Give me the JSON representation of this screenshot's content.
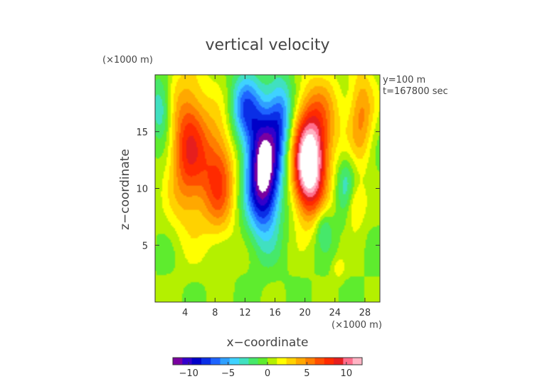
{
  "chart_data": {
    "type": "heatmap",
    "title": "vertical velocity",
    "xlabel": "x−coordinate",
    "ylabel": "z−coordinate",
    "x_unit": "(×1000 m)",
    "y_unit": "(×1000 m)",
    "annotations": [
      "y=100 m",
      "t=167800 sec"
    ],
    "xlim": [
      0,
      30
    ],
    "ylim": [
      0,
      20
    ],
    "x_ticks": [
      4,
      8,
      12,
      16,
      20,
      24,
      28
    ],
    "y_ticks": [
      5,
      10,
      15
    ],
    "x_tick_labels": [
      "4",
      "8",
      "12",
      "16",
      "20",
      "24",
      "28"
    ],
    "y_tick_labels": [
      "5",
      "10",
      "15"
    ],
    "colorbar": {
      "min": -12,
      "max": 12,
      "ticks": [
        -10,
        -5,
        0,
        5,
        10
      ],
      "tick_labels": [
        "−10",
        "−5",
        "0",
        "5",
        "10"
      ],
      "colors": [
        "#7a00a0",
        "#3300cc",
        "#0000c8",
        "#0a2ee6",
        "#1e64ff",
        "#2fa0ff",
        "#3fd2ff",
        "#40e0c0",
        "#46e86a",
        "#5eec2e",
        "#b4f000",
        "#ffff00",
        "#ffd200",
        "#ffa800",
        "#ff7e00",
        "#ff4e00",
        "#ff2a00",
        "#e61e1e",
        "#ff6e8c",
        "#ffb4c4"
      ]
    },
    "features": [
      {
        "kind": "downdraft",
        "x": 14.5,
        "z": 11.5,
        "peak": -14,
        "note": "white region exceeds colorbar minimum"
      },
      {
        "kind": "updraft",
        "x": 20.5,
        "z": 11.5,
        "peak": 13
      },
      {
        "kind": "updraft",
        "x": 4.5,
        "z": 13.5,
        "peak": 8
      },
      {
        "kind": "updraft",
        "x": 8.5,
        "z": 11.0,
        "peak": 7
      },
      {
        "kind": "downdraft",
        "x": 1.0,
        "z": 17.0,
        "peak": -4
      },
      {
        "kind": "downdraft",
        "x": 25.5,
        "z": 10.0,
        "peak": -4
      }
    ]
  }
}
